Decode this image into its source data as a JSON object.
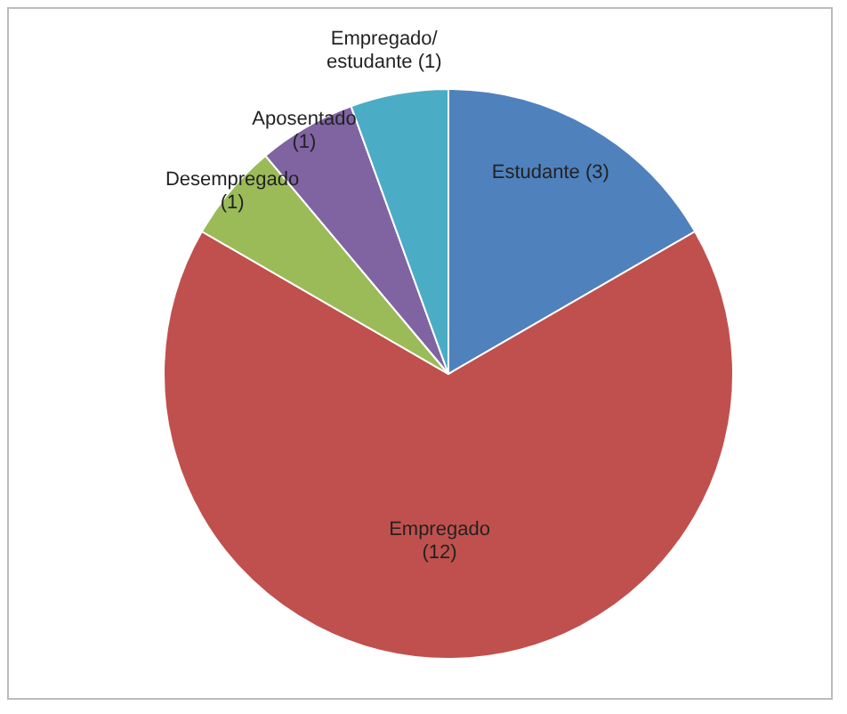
{
  "chart_data": {
    "type": "pie",
    "categories": [
      "Estudante",
      "Empregado",
      "Desempregado",
      "Aposentado",
      "Empregado/estudante"
    ],
    "values": [
      3,
      12,
      1,
      1,
      1
    ],
    "colors": [
      "#4f81bd",
      "#c0504d",
      "#9bbb59",
      "#8064a2",
      "#4bacc6"
    ],
    "value_labels": [
      "(3)",
      "(12)",
      "(1)",
      "(1)",
      "(1)"
    ]
  }
}
